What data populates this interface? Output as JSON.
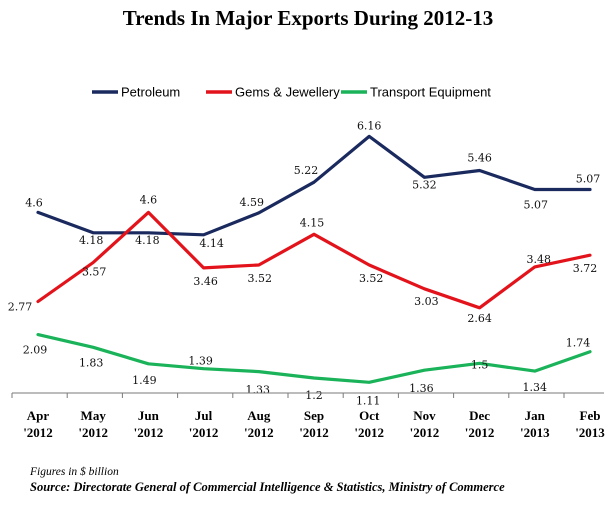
{
  "chart_data": {
    "type": "line",
    "title": "Trends In Major Exports During 2012-13",
    "categories": [
      "Apr '2012",
      "May '2012",
      "Jun '2012",
      "Jul '2012",
      "Aug '2012",
      "Sep '2012",
      "Oct '2012",
      "Nov '2012",
      "Dec '2012",
      "Jan '2013",
      "Feb '2013"
    ],
    "category_lines": [
      [
        "Apr",
        "'2012"
      ],
      [
        "May",
        "'2012"
      ],
      [
        "Jun",
        "'2012"
      ],
      [
        "Jul",
        "'2012"
      ],
      [
        "Aug",
        "'2012"
      ],
      [
        "Sep",
        "'2012"
      ],
      [
        "Oct",
        "'2012"
      ],
      [
        "Nov",
        "'2012"
      ],
      [
        "Dec",
        "'2012"
      ],
      [
        "Jan",
        "'2013"
      ],
      [
        "Feb",
        "'2013"
      ]
    ],
    "series": [
      {
        "name": "Petroleum",
        "color": "#1a2a5e",
        "values": [
          4.6,
          4.18,
          4.18,
          4.14,
          4.59,
          5.22,
          6.16,
          5.32,
          5.46,
          5.07,
          5.07
        ],
        "labels": [
          "4.6",
          "4.18",
          "4.18",
          "4.14",
          "4.59",
          "5.22",
          "6.16",
          "5.32",
          "5.46",
          "5.07",
          "5.07"
        ]
      },
      {
        "name": "Gems & Jewellery",
        "color": "#e3131b",
        "values": [
          2.77,
          3.57,
          4.6,
          3.46,
          3.52,
          4.15,
          3.52,
          3.03,
          2.64,
          3.48,
          3.72
        ],
        "labels": [
          "2.77",
          "3.57",
          "4.6",
          "3.46",
          "3.52",
          "4.15",
          "3.52",
          "3.03",
          "2.64",
          "3.48",
          "3.72"
        ]
      },
      {
        "name": "Transport Equipment",
        "color": "#1ab35a",
        "values": [
          2.09,
          1.83,
          1.49,
          1.39,
          1.33,
          1.2,
          1.11,
          1.36,
          1.5,
          1.34,
          1.74
        ],
        "labels": [
          "2.09",
          "1.83",
          "1.49",
          "1.39",
          "1.33",
          "1.2",
          "1.11",
          "1.36",
          "1.5",
          "1.34",
          "1.74"
        ]
      }
    ],
    "ylim": [
      0,
      7
    ],
    "legend_position": "top",
    "grid": false
  },
  "footnote": "Figures in $ billion",
  "source": "Source: Directorate General of Commercial Intelligence & Statistics, Ministry of Commerce"
}
